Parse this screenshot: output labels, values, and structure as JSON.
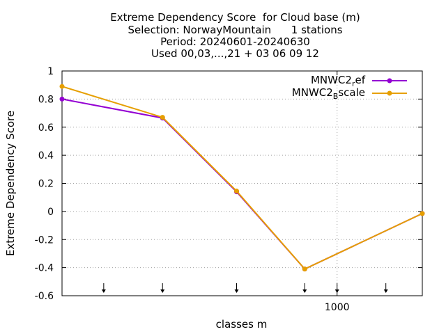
{
  "title_lines": [
    "Extreme Dependency Score  for Cloud base (m)",
    "Selection: NorwayMountain      1 stations",
    "Period: 20240601-20240630",
    "Used 00,03,...,21 + 03 06 09 12"
  ],
  "colors": {
    "series_ref": "#9400d3",
    "series_bscale": "#e69f00",
    "grid": "#a0a0a0",
    "axis": "#000000"
  },
  "chart_data": {
    "type": "line",
    "title": "Extreme Dependency Score  for Cloud base (m)",
    "xlabel": "classes m",
    "ylabel": "Extreme Dependency Score",
    "x_scale": "log",
    "xlim": [
      150,
      1800
    ],
    "ylim": [
      -0.6,
      1
    ],
    "yticks": [
      {
        "value": 1,
        "label": "1"
      },
      {
        "value": 0.8,
        "label": "0.8"
      },
      {
        "value": 0.6,
        "label": "0.6"
      },
      {
        "value": 0.4,
        "label": "0.4"
      },
      {
        "value": 0.2,
        "label": "0.2"
      },
      {
        "value": 0,
        "label": "0"
      },
      {
        "value": -0.2,
        "label": "-0.2"
      },
      {
        "value": -0.4,
        "label": "-0.4"
      },
      {
        "value": -0.6,
        "label": "-0.6"
      }
    ],
    "xticks": [
      {
        "value": 1000,
        "label": "1000"
      }
    ],
    "arrow_markers_x": [
      50,
      200,
      300,
      500,
      800,
      1000,
      1400
    ],
    "grid": true,
    "legend_position": "top-right",
    "series": [
      {
        "legend_main": "MNWC2",
        "legend_sub": "r",
        "legend_rest": "ef",
        "color": "#9400d3",
        "points": [
          [
            150,
            0.8
          ],
          [
            300,
            0.665
          ],
          [
            500,
            0.14
          ],
          [
            800,
            -0.41
          ],
          [
            1800,
            -0.015
          ]
        ]
      },
      {
        "legend_main": "MNWC2",
        "legend_sub": "B",
        "legend_rest": "scale",
        "color": "#e69f00",
        "points": [
          [
            150,
            0.89
          ],
          [
            300,
            0.67
          ],
          [
            500,
            0.145
          ],
          [
            800,
            -0.41
          ],
          [
            1800,
            -0.015
          ]
        ]
      }
    ]
  }
}
